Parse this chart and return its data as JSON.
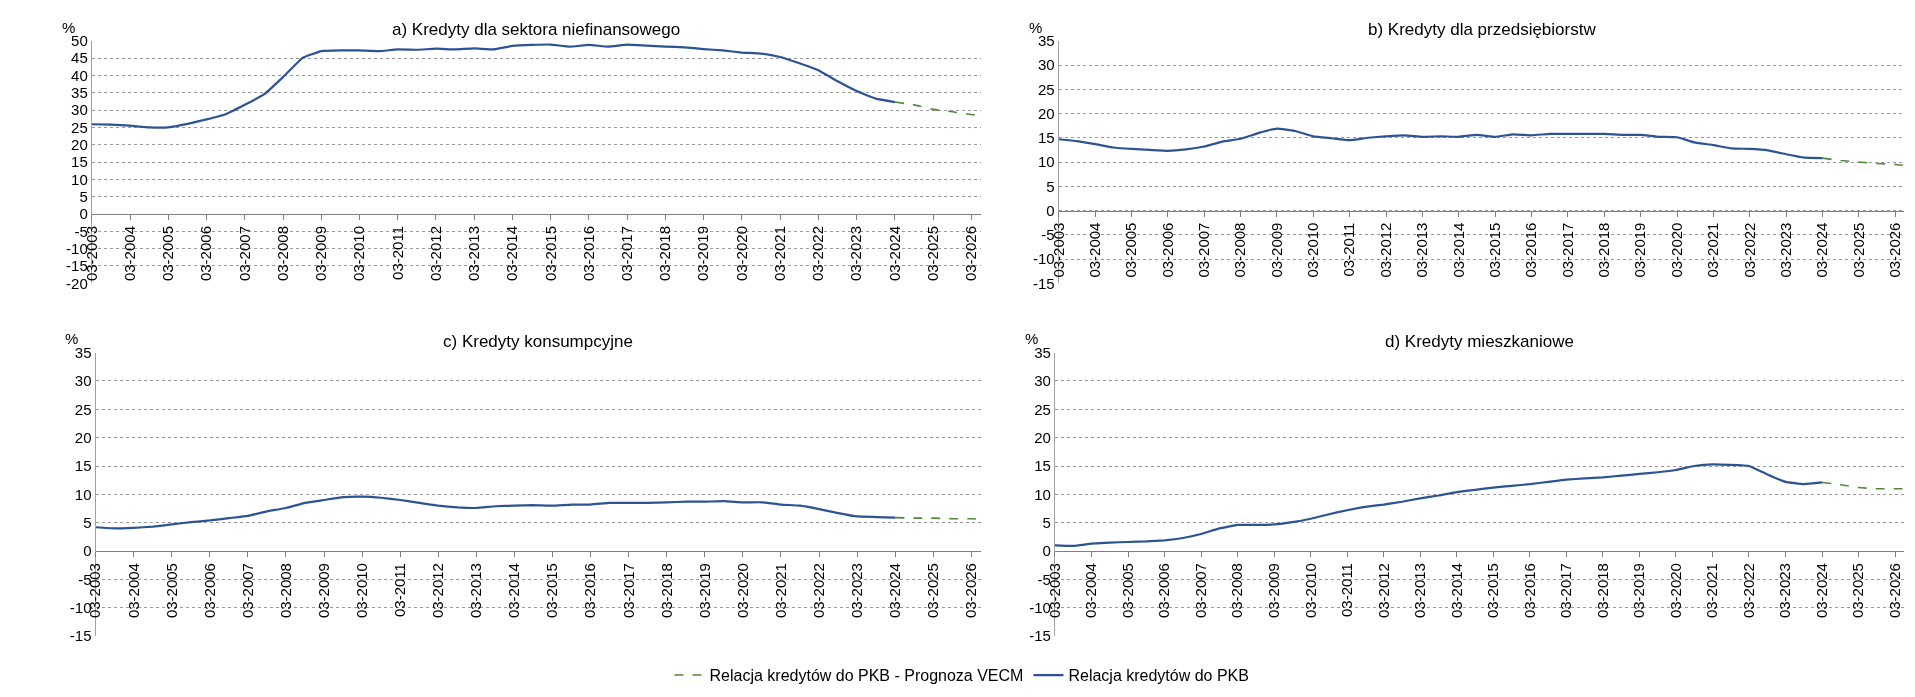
{
  "chart_data": [
    {
      "type": "line",
      "title": "a) Kredyty dla sektora niefinansowego",
      "ylabel": "%",
      "grid": "y",
      "legend": "bottom",
      "xlim": [
        "2003-03",
        "2026-06"
      ],
      "xticks": [
        {
          "value": "2003-03",
          "label": "03-2003"
        },
        {
          "value": "2004-03",
          "label": "03-2004"
        },
        {
          "value": "2005-03",
          "label": "03-2005"
        },
        {
          "value": "2006-03",
          "label": "03-2006"
        },
        {
          "value": "2007-03",
          "label": "03-2007"
        },
        {
          "value": "2008-03",
          "label": "03-2008"
        },
        {
          "value": "2009-03",
          "label": "03-2009"
        },
        {
          "value": "2010-03",
          "label": "03-2010"
        },
        {
          "value": "2011-03",
          "label": "03-2011"
        },
        {
          "value": "2012-03",
          "label": "03-2012"
        },
        {
          "value": "2013-03",
          "label": "03-2013"
        },
        {
          "value": "2014-03",
          "label": "03-2014"
        },
        {
          "value": "2015-03",
          "label": "03-2015"
        },
        {
          "value": "2016-03",
          "label": "03-2016"
        },
        {
          "value": "2017-03",
          "label": "03-2017"
        },
        {
          "value": "2018-03",
          "label": "03-2018"
        },
        {
          "value": "2019-03",
          "label": "03-2019"
        },
        {
          "value": "2020-03",
          "label": "03-2020"
        },
        {
          "value": "2021-03",
          "label": "03-2021"
        },
        {
          "value": "2022-03",
          "label": "03-2022"
        },
        {
          "value": "2023-03",
          "label": "03-2023"
        },
        {
          "value": "2024-03",
          "label": "03-2024"
        },
        {
          "value": "2025-03",
          "label": "03-2025"
        },
        {
          "value": "2026-03",
          "label": "03-2026"
        }
      ],
      "ylim": [
        -20,
        50
      ],
      "yticks": [
        -20,
        -15,
        -10,
        -5,
        0,
        5,
        10,
        15,
        20,
        25,
        30,
        35,
        40,
        45,
        50
      ],
      "series": [
        {
          "name": "Relacja kredytów do PKB - Prognoza VECM",
          "color": "#4e8a3a",
          "line_style": "dashed",
          "x": [
            "2024-03",
            "2024-09",
            "2025-03",
            "2025-09",
            "2026-03",
            "2026-06"
          ],
          "values": [
            32.3,
            31.5,
            30.2,
            29.5,
            28.7,
            28.4
          ]
        },
        {
          "name": "Relacja kredytów do PKB",
          "color": "#2e5395",
          "line_style": "solid",
          "x": [
            "2003-03",
            "2003-09",
            "2004-03",
            "2004-09",
            "2005-03",
            "2005-09",
            "2006-03",
            "2006-09",
            "2007-03",
            "2007-09",
            "2008-03",
            "2008-09",
            "2009-03",
            "2009-09",
            "2010-03",
            "2010-09",
            "2011-03",
            "2011-09",
            "2012-03",
            "2012-09",
            "2013-03",
            "2013-09",
            "2014-03",
            "2014-09",
            "2015-03",
            "2015-09",
            "2016-03",
            "2016-09",
            "2017-03",
            "2017-09",
            "2018-03",
            "2018-09",
            "2019-03",
            "2019-09",
            "2020-03",
            "2020-09",
            "2021-03",
            "2021-09",
            "2022-03",
            "2022-09",
            "2023-03",
            "2023-09",
            "2024-03"
          ],
          "values": [
            25.9,
            25.8,
            25.5,
            25.0,
            25.0,
            26.0,
            27.3,
            28.8,
            31.5,
            34.5,
            39.5,
            45.0,
            47.0,
            47.2,
            47.2,
            47.0,
            47.5,
            47.4,
            47.7,
            47.5,
            47.8,
            47.5,
            48.5,
            48.8,
            48.9,
            48.3,
            48.8,
            48.3,
            48.9,
            48.6,
            48.3,
            48.1,
            47.6,
            47.2,
            46.6,
            46.3,
            45.3,
            43.5,
            41.5,
            38.3,
            35.5,
            33.3,
            32.3
          ]
        }
      ]
    },
    {
      "type": "line",
      "title": "b) Kredyty dla przedsiębiorstw",
      "ylabel": "%",
      "grid": "y",
      "xlim": [
        "2003-03",
        "2026-06"
      ],
      "xticks": [
        {
          "value": "2003-03",
          "label": "03-2003"
        },
        {
          "value": "2004-03",
          "label": "03-2004"
        },
        {
          "value": "2005-03",
          "label": "03-2005"
        },
        {
          "value": "2006-03",
          "label": "03-2006"
        },
        {
          "value": "2007-03",
          "label": "03-2007"
        },
        {
          "value": "2008-03",
          "label": "03-2008"
        },
        {
          "value": "2009-03",
          "label": "03-2009"
        },
        {
          "value": "2010-03",
          "label": "03-2010"
        },
        {
          "value": "2011-03",
          "label": "03-2011"
        },
        {
          "value": "2012-03",
          "label": "03-2012"
        },
        {
          "value": "2013-03",
          "label": "03-2013"
        },
        {
          "value": "2014-03",
          "label": "03-2014"
        },
        {
          "value": "2015-03",
          "label": "03-2015"
        },
        {
          "value": "2016-03",
          "label": "03-2016"
        },
        {
          "value": "2017-03",
          "label": "03-2017"
        },
        {
          "value": "2018-03",
          "label": "03-2018"
        },
        {
          "value": "2019-03",
          "label": "03-2019"
        },
        {
          "value": "2020-03",
          "label": "03-2020"
        },
        {
          "value": "2021-03",
          "label": "03-2021"
        },
        {
          "value": "2022-03",
          "label": "03-2022"
        },
        {
          "value": "2023-03",
          "label": "03-2023"
        },
        {
          "value": "2024-03",
          "label": "03-2024"
        },
        {
          "value": "2025-03",
          "label": "03-2025"
        },
        {
          "value": "2026-03",
          "label": "03-2026"
        }
      ],
      "ylim": [
        -15,
        35
      ],
      "yticks": [
        -15,
        -10,
        -5,
        0,
        5,
        10,
        15,
        20,
        25,
        30,
        35
      ],
      "series": [
        {
          "color": "#4e8a3a",
          "line_style": "dashed",
          "x": [
            "2024-03",
            "2024-09",
            "2025-03",
            "2025-09",
            "2026-03",
            "2026-06"
          ],
          "values": [
            10.8,
            10.3,
            10.0,
            9.7,
            9.5,
            9.3
          ]
        },
        {
          "color": "#2e5395",
          "line_style": "solid",
          "x": [
            "2003-03",
            "2003-09",
            "2004-03",
            "2004-09",
            "2005-03",
            "2005-09",
            "2006-03",
            "2006-09",
            "2007-03",
            "2007-09",
            "2008-03",
            "2008-09",
            "2009-03",
            "2009-09",
            "2010-03",
            "2010-09",
            "2011-03",
            "2011-09",
            "2012-03",
            "2012-09",
            "2013-03",
            "2013-09",
            "2014-03",
            "2014-09",
            "2015-03",
            "2015-09",
            "2016-03",
            "2016-09",
            "2017-03",
            "2017-09",
            "2018-03",
            "2018-09",
            "2019-03",
            "2019-09",
            "2020-03",
            "2020-09",
            "2021-03",
            "2021-09",
            "2022-03",
            "2022-09",
            "2023-03",
            "2023-09",
            "2024-03"
          ],
          "values": [
            14.7,
            14.3,
            13.7,
            13.0,
            12.7,
            12.5,
            12.3,
            12.6,
            13.2,
            14.2,
            14.8,
            16.0,
            16.9,
            16.4,
            15.3,
            14.9,
            14.5,
            15.0,
            15.3,
            15.5,
            15.2,
            15.3,
            15.2,
            15.6,
            15.2,
            15.7,
            15.5,
            15.8,
            15.8,
            15.8,
            15.8,
            15.6,
            15.6,
            15.2,
            15.1,
            14.0,
            13.5,
            12.8,
            12.7,
            12.4,
            11.6,
            10.9,
            10.8
          ]
        }
      ]
    },
    {
      "type": "line",
      "title": "c) Kredyty konsumpcyjne",
      "ylabel": "%",
      "grid": "y",
      "xlim": [
        "2003-03",
        "2026-06"
      ],
      "xticks": [
        {
          "value": "2003-03",
          "label": "03-2003"
        },
        {
          "value": "2004-03",
          "label": "03-2004"
        },
        {
          "value": "2005-03",
          "label": "03-2005"
        },
        {
          "value": "2006-03",
          "label": "03-2006"
        },
        {
          "value": "2007-03",
          "label": "03-2007"
        },
        {
          "value": "2008-03",
          "label": "03-2008"
        },
        {
          "value": "2009-03",
          "label": "03-2009"
        },
        {
          "value": "2010-03",
          "label": "03-2010"
        },
        {
          "value": "2011-03",
          "label": "03-2011"
        },
        {
          "value": "2012-03",
          "label": "03-2012"
        },
        {
          "value": "2013-03",
          "label": "03-2013"
        },
        {
          "value": "2014-03",
          "label": "03-2014"
        },
        {
          "value": "2015-03",
          "label": "03-2015"
        },
        {
          "value": "2016-03",
          "label": "03-2016"
        },
        {
          "value": "2017-03",
          "label": "03-2017"
        },
        {
          "value": "2018-03",
          "label": "03-2018"
        },
        {
          "value": "2019-03",
          "label": "03-2019"
        },
        {
          "value": "2020-03",
          "label": "03-2020"
        },
        {
          "value": "2021-03",
          "label": "03-2021"
        },
        {
          "value": "2022-03",
          "label": "03-2022"
        },
        {
          "value": "2023-03",
          "label": "03-2023"
        },
        {
          "value": "2024-03",
          "label": "03-2024"
        },
        {
          "value": "2025-03",
          "label": "03-2025"
        },
        {
          "value": "2026-03",
          "label": "03-2026"
        }
      ],
      "ylim": [
        -15,
        35
      ],
      "yticks": [
        -15,
        -10,
        -5,
        0,
        5,
        10,
        15,
        20,
        25,
        30,
        35
      ],
      "series": [
        {
          "color": "#4e8a3a",
          "line_style": "dashed",
          "x": [
            "2024-03",
            "2024-09",
            "2025-03",
            "2025-09",
            "2026-03",
            "2026-06"
          ],
          "values": [
            5.9,
            5.8,
            5.8,
            5.7,
            5.7,
            5.6
          ]
        },
        {
          "color": "#2e5395",
          "line_style": "solid",
          "x": [
            "2003-03",
            "2003-09",
            "2004-03",
            "2004-09",
            "2005-03",
            "2005-09",
            "2006-03",
            "2006-09",
            "2007-03",
            "2007-09",
            "2008-03",
            "2008-09",
            "2009-03",
            "2009-09",
            "2010-03",
            "2010-09",
            "2011-03",
            "2011-09",
            "2012-03",
            "2012-09",
            "2013-03",
            "2013-09",
            "2014-03",
            "2014-09",
            "2015-03",
            "2015-09",
            "2016-03",
            "2016-09",
            "2017-03",
            "2017-09",
            "2018-03",
            "2018-09",
            "2019-03",
            "2019-09",
            "2020-03",
            "2020-09",
            "2021-03",
            "2021-09",
            "2022-03",
            "2022-09",
            "2023-03",
            "2023-09",
            "2024-03"
          ],
          "values": [
            4.2,
            4.0,
            4.1,
            4.3,
            4.7,
            5.1,
            5.4,
            5.8,
            6.2,
            7.0,
            7.6,
            8.5,
            9.0,
            9.5,
            9.6,
            9.4,
            9.0,
            8.5,
            8.0,
            7.7,
            7.6,
            7.9,
            8.0,
            8.1,
            8.0,
            8.2,
            8.2,
            8.5,
            8.5,
            8.5,
            8.6,
            8.7,
            8.7,
            8.8,
            8.6,
            8.6,
            8.2,
            8.0,
            7.4,
            6.7,
            6.1,
            6.0,
            5.9
          ]
        }
      ]
    },
    {
      "type": "line",
      "title": "d) Kredyty mieszkaniowe",
      "ylabel": "%",
      "grid": "y",
      "xlim": [
        "2003-03",
        "2026-06"
      ],
      "xticks": [
        {
          "value": "2003-03",
          "label": "03-2003"
        },
        {
          "value": "2004-03",
          "label": "03-2004"
        },
        {
          "value": "2005-03",
          "label": "03-2005"
        },
        {
          "value": "2006-03",
          "label": "03-2006"
        },
        {
          "value": "2007-03",
          "label": "03-2007"
        },
        {
          "value": "2008-03",
          "label": "03-2008"
        },
        {
          "value": "2009-03",
          "label": "03-2009"
        },
        {
          "value": "2010-03",
          "label": "03-2010"
        },
        {
          "value": "2011-03",
          "label": "03-2011"
        },
        {
          "value": "2012-03",
          "label": "03-2012"
        },
        {
          "value": "2013-03",
          "label": "03-2013"
        },
        {
          "value": "2014-03",
          "label": "03-2014"
        },
        {
          "value": "2015-03",
          "label": "03-2015"
        },
        {
          "value": "2016-03",
          "label": "03-2016"
        },
        {
          "value": "2017-03",
          "label": "03-2017"
        },
        {
          "value": "2018-03",
          "label": "03-2018"
        },
        {
          "value": "2019-03",
          "label": "03-2019"
        },
        {
          "value": "2020-03",
          "label": "03-2020"
        },
        {
          "value": "2021-03",
          "label": "03-2021"
        },
        {
          "value": "2022-03",
          "label": "03-2022"
        },
        {
          "value": "2023-03",
          "label": "03-2023"
        },
        {
          "value": "2024-03",
          "label": "03-2024"
        },
        {
          "value": "2025-03",
          "label": "03-2025"
        },
        {
          "value": "2026-03",
          "label": "03-2026"
        }
      ],
      "ylim": [
        -15,
        35
      ],
      "yticks": [
        -15,
        -10,
        -5,
        0,
        5,
        10,
        15,
        20,
        25,
        30,
        35
      ],
      "series": [
        {
          "color": "#4e8a3a",
          "line_style": "dashed",
          "x": [
            "2024-03",
            "2024-09",
            "2025-03",
            "2025-09",
            "2026-03",
            "2026-06"
          ],
          "values": [
            12.1,
            11.7,
            11.2,
            11.0,
            11.0,
            11.0
          ]
        },
        {
          "color": "#2e5395",
          "line_style": "solid",
          "x": [
            "2003-03",
            "2003-09",
            "2004-03",
            "2004-09",
            "2005-03",
            "2005-09",
            "2006-03",
            "2006-09",
            "2007-03",
            "2007-09",
            "2008-03",
            "2008-09",
            "2009-03",
            "2009-09",
            "2010-03",
            "2010-09",
            "2011-03",
            "2011-09",
            "2012-03",
            "2012-09",
            "2013-03",
            "2013-09",
            "2014-03",
            "2014-09",
            "2015-03",
            "2015-09",
            "2016-03",
            "2016-09",
            "2017-03",
            "2017-09",
            "2018-03",
            "2018-09",
            "2019-03",
            "2019-09",
            "2020-03",
            "2020-09",
            "2021-03",
            "2021-09",
            "2022-03",
            "2022-09",
            "2023-03",
            "2023-09",
            "2024-03"
          ],
          "values": [
            1.0,
            0.9,
            1.3,
            1.5,
            1.6,
            1.7,
            1.9,
            2.3,
            3.0,
            4.0,
            4.6,
            4.6,
            4.7,
            5.1,
            5.7,
            6.5,
            7.2,
            7.8,
            8.2,
            8.7,
            9.3,
            9.8,
            10.4,
            10.8,
            11.2,
            11.5,
            11.8,
            12.2,
            12.6,
            12.8,
            13.0,
            13.3,
            13.6,
            13.9,
            14.3,
            15.0,
            15.3,
            15.2,
            15.0,
            13.5,
            12.2,
            11.8,
            12.1
          ]
        }
      ]
    }
  ]
}
